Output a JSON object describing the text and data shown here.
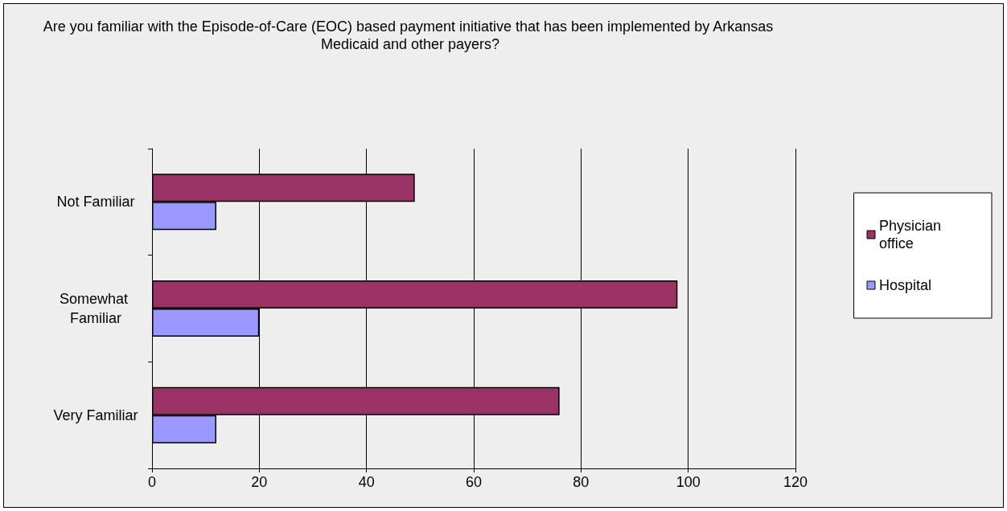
{
  "chart_data": {
    "type": "bar",
    "orientation": "horizontal",
    "title": "Are you familiar with the Episode-of-Care (EOC) based payment initiative that has been implemented by Arkansas Medicaid and other payers?",
    "categories": [
      "Not Familiar",
      "Somewhat Familiar",
      "Very Familiar"
    ],
    "series": [
      {
        "name": "Physician office",
        "color": "#993366",
        "values": [
          49,
          98,
          76
        ]
      },
      {
        "name": "Hospital",
        "color": "#9999ff",
        "values": [
          12,
          20,
          12
        ]
      }
    ],
    "xlim": [
      0,
      120
    ],
    "xticks": [
      0,
      20,
      40,
      60,
      80,
      100,
      120
    ],
    "grid": "x",
    "legend": "right"
  }
}
